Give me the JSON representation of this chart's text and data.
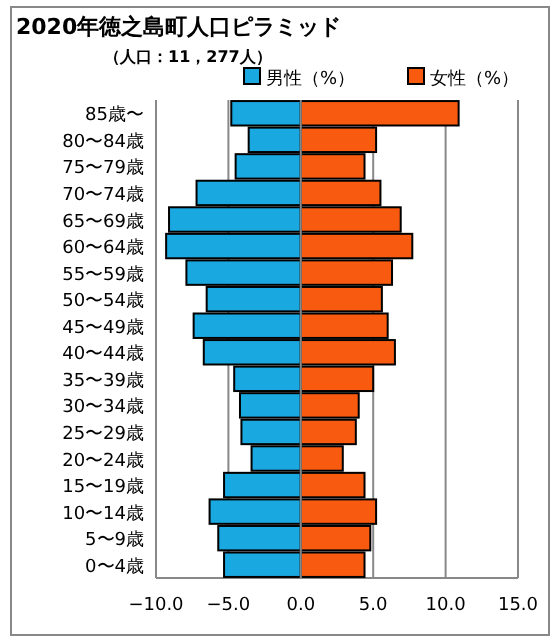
{
  "chart_data": {
    "type": "bar",
    "orientation": "horizontal",
    "stacked": true,
    "title": "2020年徳之島町人口ピラミッド",
    "subtitle": "（人口：11，277人）",
    "categories": [
      "85歳〜",
      "80〜84歳",
      "75〜79歳",
      "70〜74歳",
      "65〜69歳",
      "60〜64歳",
      "55〜59歳",
      "50〜54歳",
      "45〜49歳",
      "40〜44歳",
      "35〜39歳",
      "30〜34歳",
      "25〜29歳",
      "20〜24歳",
      "15〜19歳",
      "10〜14歳",
      "5〜9歳",
      "0〜4歳"
    ],
    "series": [
      {
        "name": "男性（%）",
        "color": "#1aa8e0",
        "values": [
          -4.8,
          -3.6,
          -4.5,
          -7.2,
          -9.1,
          -9.3,
          -7.9,
          -6.5,
          -7.4,
          -6.7,
          -4.6,
          -4.2,
          -4.1,
          -3.4,
          -5.3,
          -6.3,
          -5.7,
          -5.3
        ]
      },
      {
        "name": "女性（%）",
        "color": "#f85a10",
        "values": [
          10.9,
          5.2,
          4.4,
          5.5,
          6.9,
          7.7,
          6.3,
          5.6,
          6.0,
          6.5,
          5.0,
          4.0,
          3.8,
          2.9,
          4.4,
          5.2,
          4.8,
          4.4
        ]
      }
    ],
    "xlim": [
      -10,
      15
    ],
    "xticks": [
      {
        "value": -10,
        "label": "−10.0"
      },
      {
        "value": -5,
        "label": "−5.0"
      },
      {
        "value": 0,
        "label": "0.0"
      },
      {
        "value": 5,
        "label": "5.0"
      },
      {
        "value": 10,
        "label": "10.0"
      },
      {
        "value": 15,
        "label": "15.0"
      }
    ],
    "grid": "x",
    "legend": "top right"
  }
}
